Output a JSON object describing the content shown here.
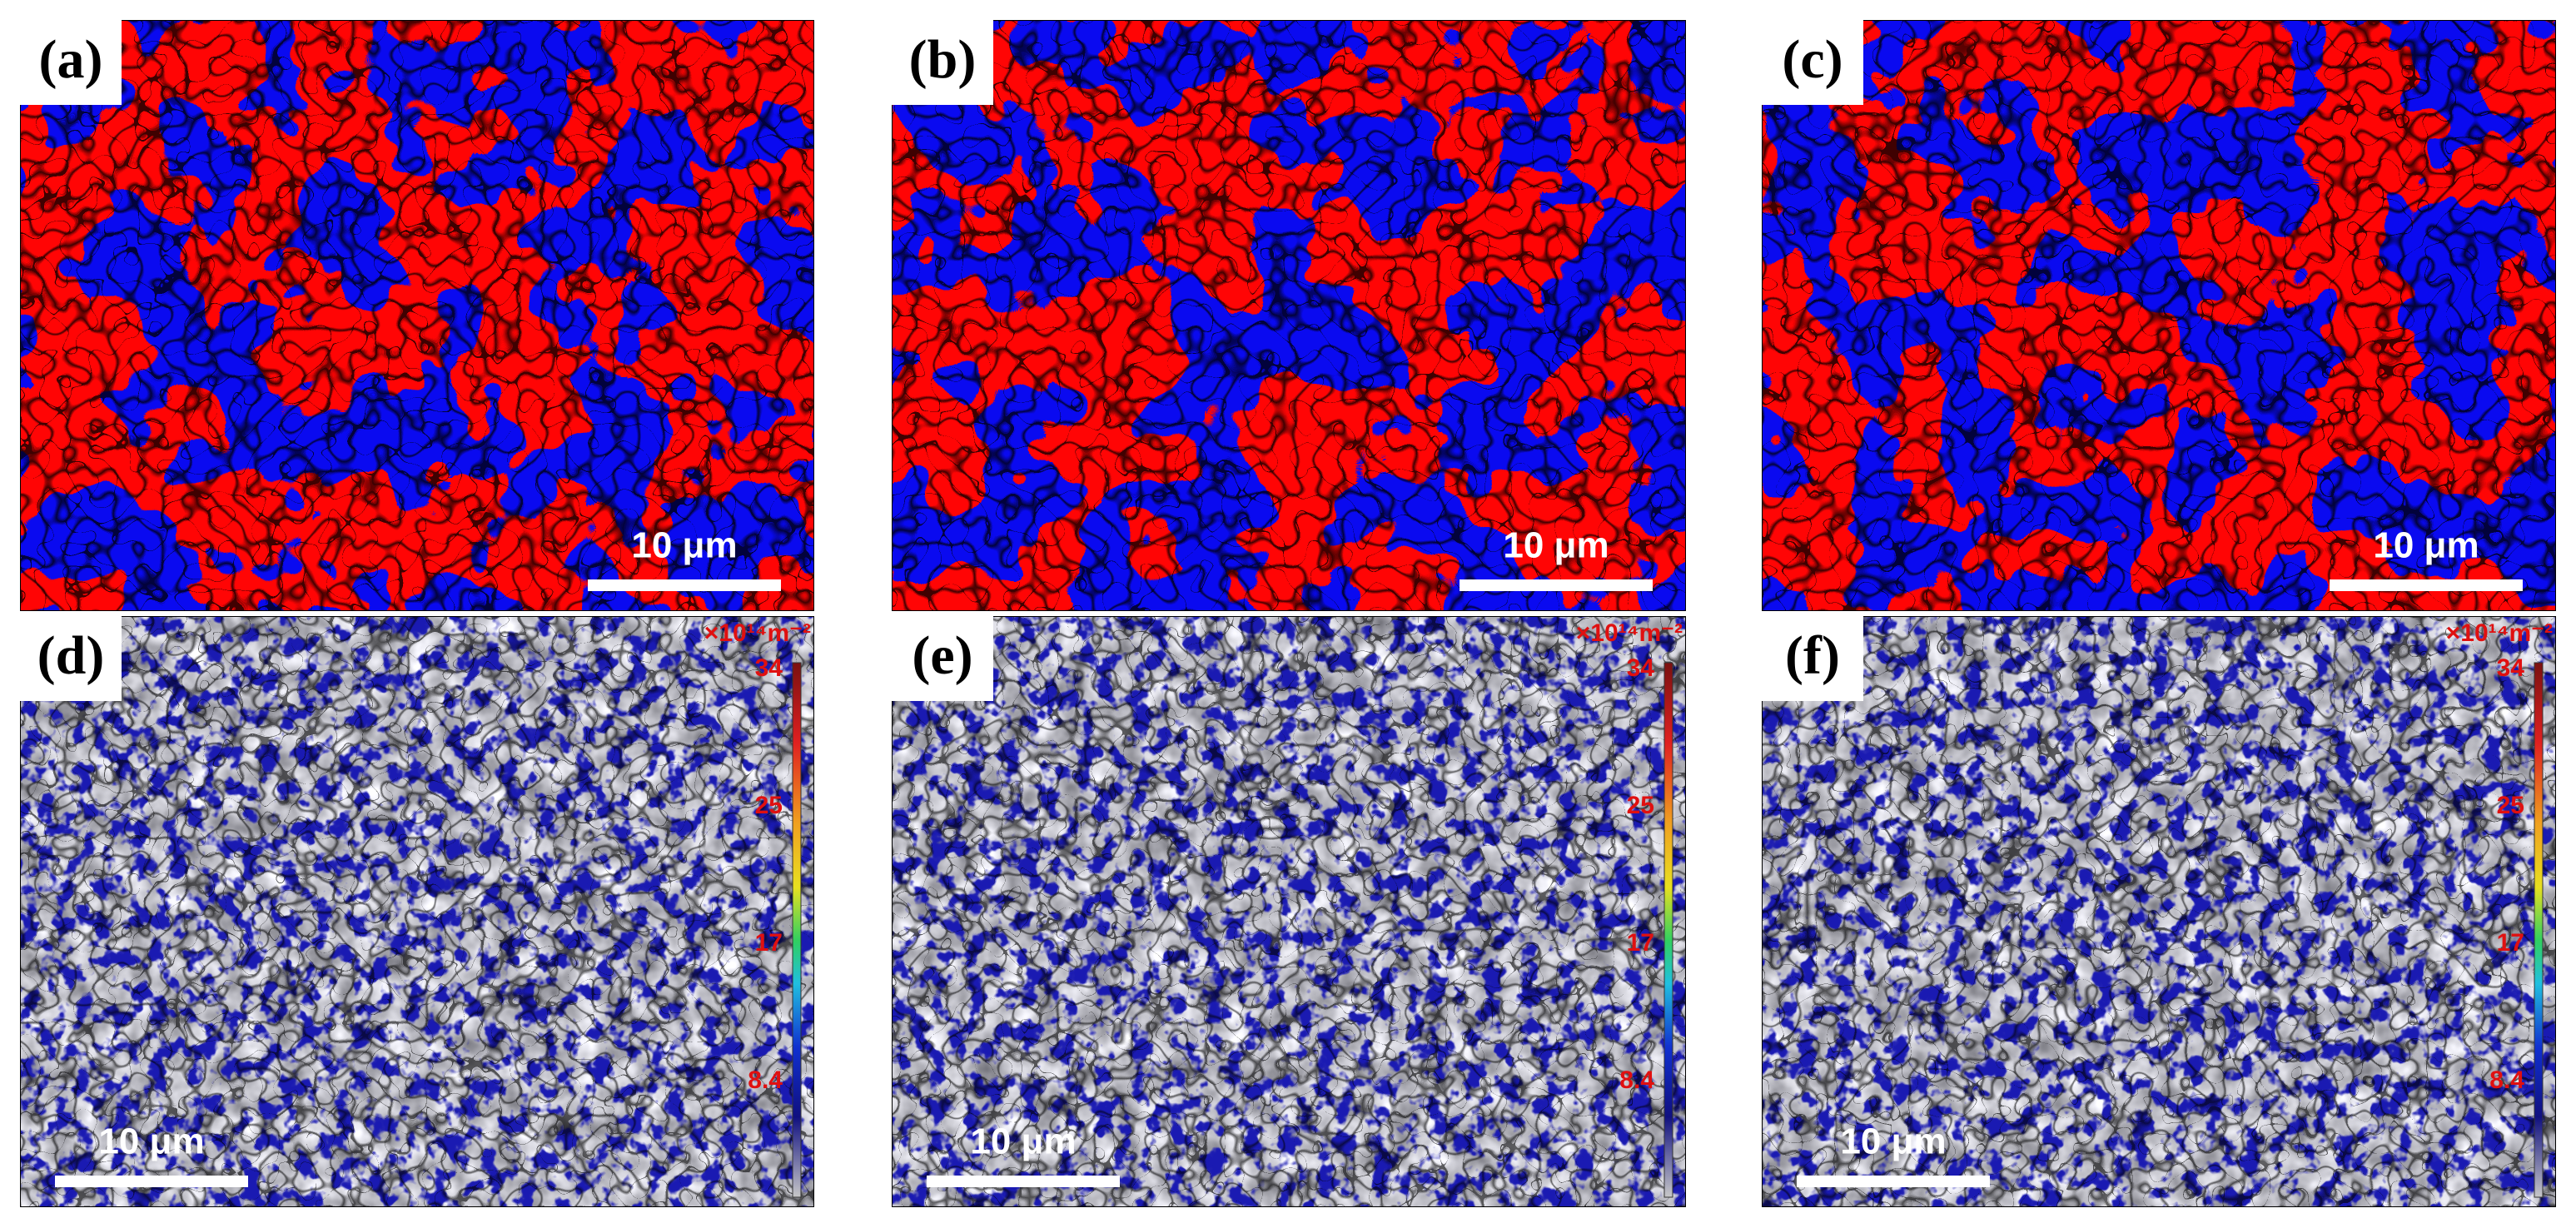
{
  "panels": [
    {
      "label": "(a)",
      "scale_bar": "10 μm"
    },
    {
      "label": "(b)",
      "scale_bar": "10 μm"
    },
    {
      "label": "(c)",
      "scale_bar": "10 μm"
    },
    {
      "label": "(d)",
      "scale_bar": "10 μm",
      "colorbar": {
        "unit": "×10¹⁴m⁻²",
        "ticks": [
          34,
          25,
          17,
          8.4
        ]
      }
    },
    {
      "label": "(e)",
      "scale_bar": "10 μm",
      "colorbar": {
        "unit": "×10¹⁴m⁻²",
        "ticks": [
          34,
          25,
          17,
          8.4
        ]
      }
    },
    {
      "label": "(f)",
      "scale_bar": "10 μm",
      "colorbar": {
        "unit": "×10¹⁴m⁻²",
        "ticks": [
          34,
          25,
          17,
          8.4
        ]
      }
    }
  ]
}
